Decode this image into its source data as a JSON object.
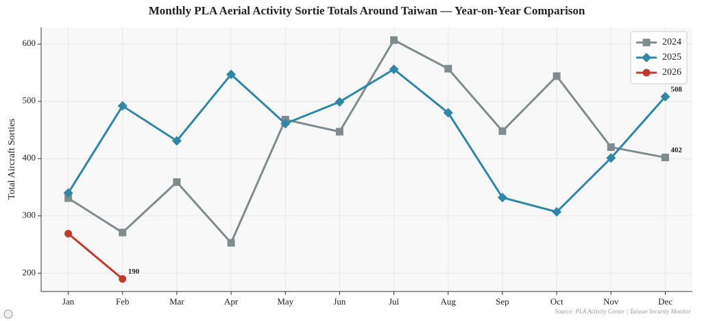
{
  "chart_data": {
    "type": "line",
    "title": "Monthly PLA Aerial Activity Sortie Totals Around Taiwan — Year-on-Year Comparison",
    "ylabel": "Total Aircraft Sorties",
    "source": "Source: PLA Activity Center | Taiwan Security Monitor",
    "categories": [
      "Jan",
      "Feb",
      "Mar",
      "Apr",
      "May",
      "Jun",
      "Jul",
      "Aug",
      "Sep",
      "Oct",
      "Nov",
      "Dec"
    ],
    "series": [
      {
        "name": "2024",
        "color": "#7f8c8d",
        "marker": "square",
        "values": [
          331,
          271,
          359,
          253,
          468,
          447,
          607,
          557,
          448,
          544,
          420,
          402
        ],
        "value_labels": [
          null,
          null,
          null,
          null,
          null,
          null,
          null,
          null,
          null,
          null,
          null,
          "402"
        ]
      },
      {
        "name": "2025",
        "color": "#2e86a8",
        "marker": "diamond",
        "values": [
          340,
          492,
          431,
          547,
          461,
          499,
          556,
          480,
          332,
          307,
          401,
          508
        ],
        "value_labels": [
          null,
          null,
          null,
          null,
          null,
          null,
          null,
          null,
          null,
          null,
          null,
          "508"
        ]
      },
      {
        "name": "2026",
        "color": "#c0392b",
        "marker": "circle",
        "values": [
          269,
          190,
          null,
          null,
          null,
          null,
          null,
          null,
          null,
          null,
          null,
          null
        ],
        "value_labels": [
          null,
          "190",
          null,
          null,
          null,
          null,
          null,
          null,
          null,
          null,
          null,
          null
        ]
      }
    ],
    "ylim": [
      168,
      629
    ],
    "yticks": [
      200,
      300,
      400,
      500,
      600
    ],
    "grid": true,
    "legend": "upper right"
  }
}
